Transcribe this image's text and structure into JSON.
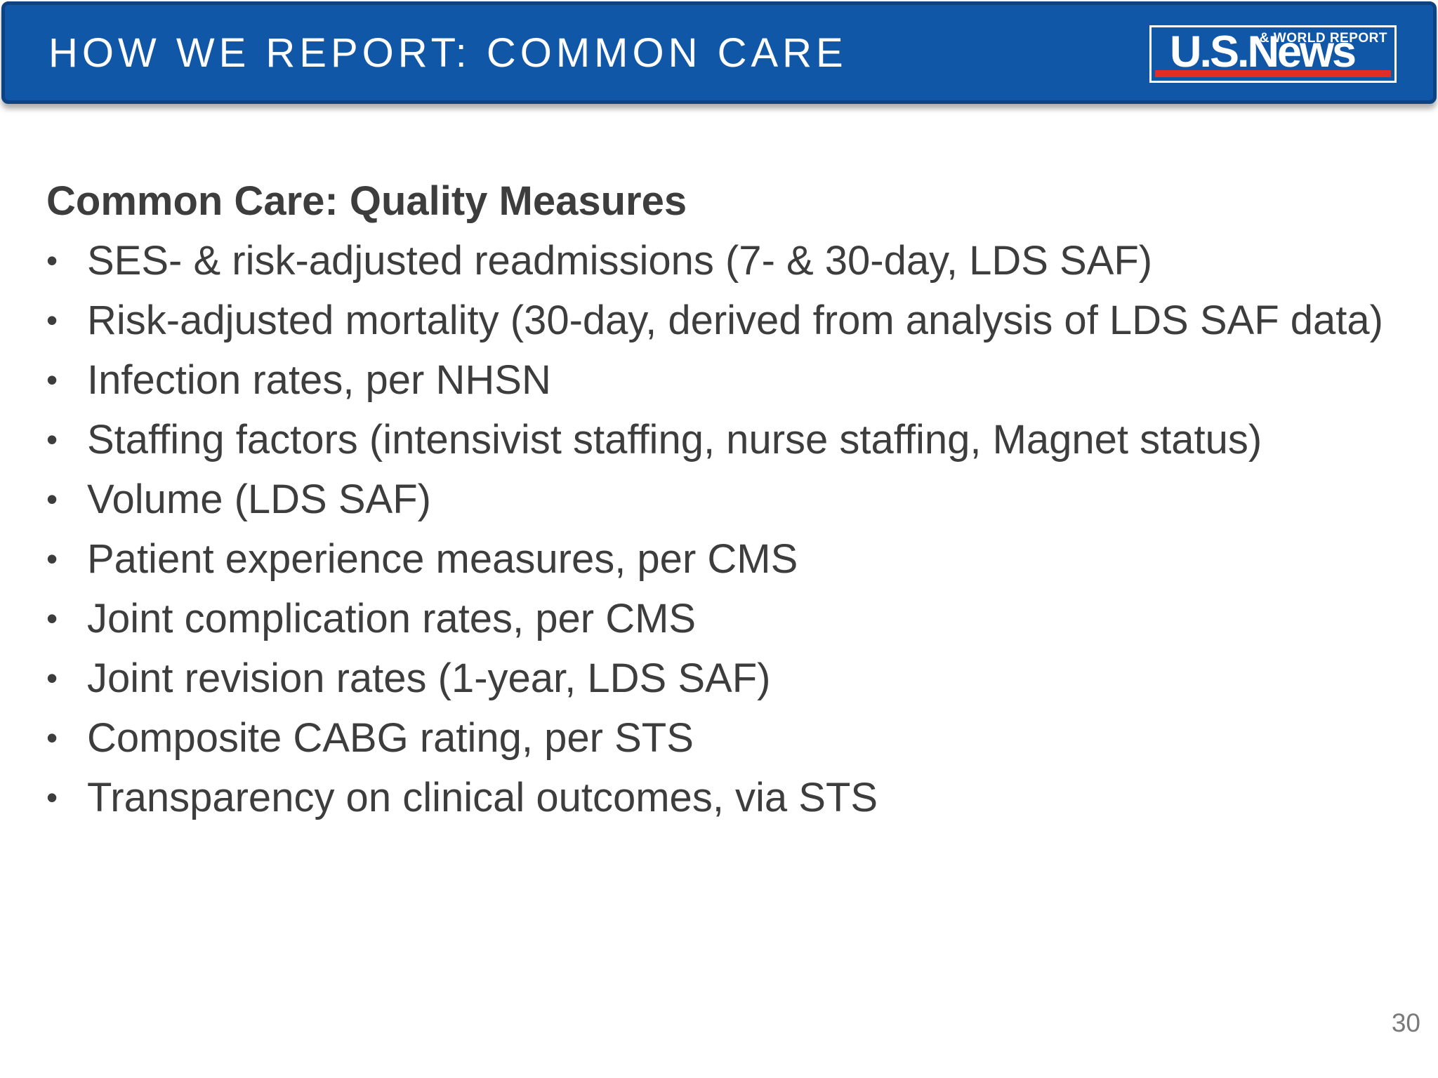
{
  "slide": {
    "title_bar": {
      "title": "HOW WE REPORT: COMMON CARE"
    },
    "logo": {
      "main": "U.S.News",
      "tagline": "& WORLD REPORT"
    },
    "content": {
      "heading": "Common Care: Quality Measures",
      "bullets": [
        "SES- & risk-adjusted readmissions (7- & 30-day, LDS SAF)",
        "Risk-adjusted mortality (30-day, derived from analysis of LDS SAF data)",
        "Infection rates, per NHSN",
        "Staffing factors (intensivist staffing, nurse staffing, Magnet status)",
        "Volume (LDS SAF)",
        "Patient experience measures, per CMS",
        "Joint complication rates, per CMS",
        "Joint revision rates (1-year, LDS SAF)",
        "Composite CABG rating, per STS",
        "Transparency on clinical outcomes, via STS"
      ],
      "bullet_glyph": "•"
    },
    "page_number": "30",
    "colors": {
      "header_blue": "#1157a8",
      "header_border": "#0d4283",
      "logo_red": "#e22d26",
      "body_text": "#3d3d3d",
      "page_gray": "#7a7a7a"
    }
  }
}
